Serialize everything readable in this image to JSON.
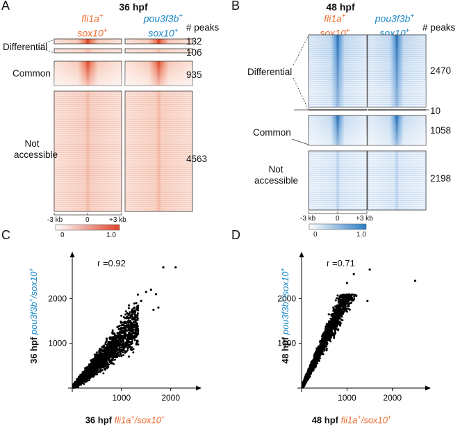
{
  "panels": {
    "A": "A",
    "B": "B",
    "C": "C",
    "D": "D"
  },
  "colors": {
    "orange": "#ee6b2f",
    "blue": "#1a87c8",
    "red_heat": "#e0442a",
    "blue_heat": "#2a7cc4"
  },
  "heatmap_A": {
    "title": "36 hpf",
    "col1": {
      "gene": "fli1a",
      "plus": "+",
      "gene2": "sox10",
      "plus2": "+"
    },
    "col2": {
      "gene": "pou3f3b",
      "plus": "+",
      "gene2": "sox10",
      "plus2": "+"
    },
    "peaks_header": "# peaks",
    "groups": [
      {
        "label": "Differential",
        "peaks": "132"
      },
      {
        "label": "",
        "peaks": "106"
      },
      {
        "label": "Common",
        "peaks": "935"
      },
      {
        "label": "Not accessible",
        "peaks": "4563"
      }
    ],
    "axis_ticks": [
      "-3 kb",
      "0",
      "+3 kb"
    ],
    "colorbar": {
      "min": "0",
      "max": "1.0"
    }
  },
  "heatmap_B": {
    "title": "48 hpf",
    "col1": {
      "gene": "fli1a",
      "plus": "+",
      "gene2": "sox10",
      "plus2": "+"
    },
    "col2": {
      "gene": "pou3f3b",
      "plus": "+",
      "gene2": "sox10",
      "plus2": "+"
    },
    "peaks_header": "# peaks",
    "groups": [
      {
        "label": "Differential",
        "peaks": "2470"
      },
      {
        "label": "",
        "peaks": "10"
      },
      {
        "label": "Common",
        "peaks": "1058"
      },
      {
        "label": "Not accessible",
        "peaks": "2198"
      }
    ],
    "axis_ticks": [
      "-3 kb",
      "0",
      "+3 kb"
    ],
    "colorbar": {
      "min": "0",
      "max": "1.0"
    }
  },
  "chart_data": [
    {
      "type": "scatter",
      "panel": "C",
      "annotation": "r =0.92",
      "xlabel": {
        "prefix": "36 hpf ",
        "gene": "fli1a",
        "plus": "+",
        "rest": "/sox10",
        "plus2": "+"
      },
      "ylabel": {
        "prefix": "36 hpf ",
        "gene": "pou3f3b",
        "plus": "+",
        "rest": "/sox10",
        "plus2": "+"
      },
      "xticks": [
        1000,
        2000
      ],
      "yticks": [
        1000,
        2000
      ],
      "xlim": [
        0,
        2400
      ],
      "ylim": [
        0,
        2800
      ],
      "n_points": 2400,
      "slope": 1.1,
      "outliers": [
        [
          1850,
          2700
        ],
        [
          2100,
          2700
        ],
        [
          1600,
          2200
        ],
        [
          1500,
          2150
        ],
        [
          1700,
          2100
        ],
        [
          1400,
          1950
        ],
        [
          1300,
          1900
        ],
        [
          1650,
          1750
        ],
        [
          1750,
          1800
        ],
        [
          1250,
          1700
        ],
        [
          1150,
          1850
        ]
      ]
    },
    {
      "type": "scatter",
      "panel": "D",
      "annotation": "r =0.71",
      "xlabel": {
        "prefix": "48 hpf ",
        "gene": "fli1a",
        "plus": "+",
        "rest": "/sox10",
        "plus2": "+"
      },
      "ylabel": {
        "prefix": "48 hpf ",
        "gene": "pou3f3b",
        "plus": "+",
        "rest": "/sox10",
        "plus2": "+"
      },
      "xticks": [
        1000,
        2000
      ],
      "yticks": [
        1000,
        2000
      ],
      "xlim": [
        0,
        2600
      ],
      "ylim": [
        0,
        2800
      ],
      "n_points": 2400,
      "slope": 2.1,
      "outliers": [
        [
          1500,
          2650
        ],
        [
          1150,
          2550
        ],
        [
          2500,
          2400
        ],
        [
          1000,
          2350
        ],
        [
          1450,
          1950
        ],
        [
          700,
          1800
        ],
        [
          950,
          1900
        ],
        [
          780,
          1700
        ],
        [
          600,
          1650
        ],
        [
          850,
          1400
        ]
      ]
    }
  ]
}
